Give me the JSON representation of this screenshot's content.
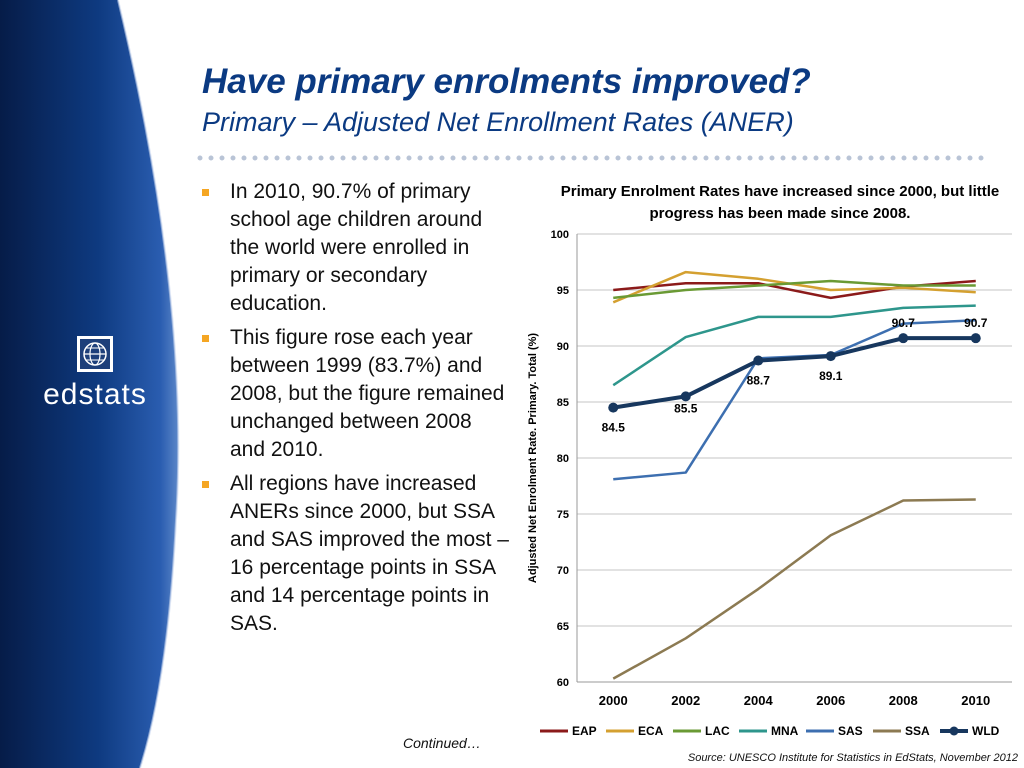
{
  "slide": {
    "title": "Have primary enrolments improved?",
    "subtitle": "Primary – Adjusted Net Enrollment Rates (ANER)",
    "brand": "edstats",
    "bullets": [
      "In 2010, 90.7% of primary school age children around the world were enrolled in primary or secondary education.",
      "This figure rose each year between 1999 (83.7%) and 2008, but the figure remained unchanged between 2008 and 2010.",
      "All regions have increased ANERs since 2000, but SSA and SAS improved the most – 16 percentage points in SSA and 14 percentage points in SAS."
    ],
    "continued": "Continued…",
    "source": "Source: UNESCO Institute for Statistics in EdStats, November 2012",
    "colors": {
      "title": "#0b3a82",
      "bullet": "#f5a623",
      "sidebar_dark": "#06204f",
      "sidebar_light": "#2a5db0"
    }
  },
  "chart_data": {
    "type": "line",
    "title": "Primary Enrolment Rates have increased since 2000, but little progress has been made since 2008.",
    "ylabel": "Adjusted Net Enrolment Rate. Primary. Total (%)",
    "xlabel": "",
    "x": [
      2000,
      2002,
      2004,
      2006,
      2008,
      2010
    ],
    "ylim": [
      60,
      100
    ],
    "yticks": [
      60,
      65,
      70,
      75,
      80,
      85,
      90,
      95,
      100
    ],
    "grid": true,
    "legend": "bottom",
    "series": [
      {
        "name": "EAP",
        "color": "#8b1a1a",
        "values": [
          95.0,
          95.6,
          95.6,
          94.3,
          95.3,
          95.8
        ]
      },
      {
        "name": "ECA",
        "color": "#d4a030",
        "values": [
          93.9,
          96.6,
          96.0,
          95.0,
          95.2,
          94.8
        ]
      },
      {
        "name": "LAC",
        "color": "#6a9a34",
        "values": [
          94.3,
          95.0,
          95.4,
          95.8,
          95.4,
          95.4
        ]
      },
      {
        "name": "MNA",
        "color": "#2e968c",
        "values": [
          86.5,
          90.8,
          92.6,
          92.6,
          93.4,
          93.6
        ]
      },
      {
        "name": "SAS",
        "color": "#3d6fb0",
        "values": [
          78.1,
          78.7,
          88.9,
          89.2,
          92.0,
          92.3
        ]
      },
      {
        "name": "SSA",
        "color": "#8c7a52",
        "values": [
          60.3,
          63.9,
          68.3,
          73.1,
          76.2,
          76.3
        ]
      },
      {
        "name": "WLD",
        "color": "#17375e",
        "bold": true,
        "values": [
          84.5,
          85.5,
          88.7,
          89.1,
          90.7,
          90.7
        ],
        "labels": [
          "84.5",
          "85.5",
          "88.7",
          "89.1",
          "90.7",
          "90.7"
        ]
      }
    ]
  }
}
